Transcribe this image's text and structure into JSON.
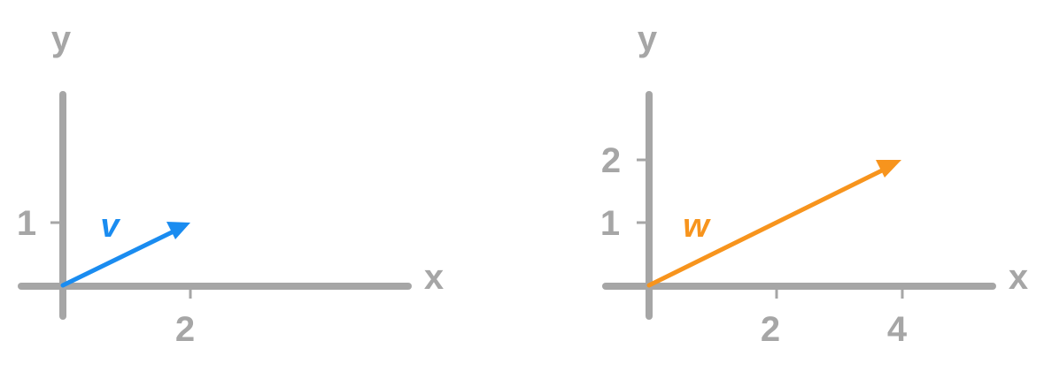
{
  "colors": {
    "axis": "#a6a6a6",
    "vector_v": "#1a8cf0",
    "vector_w": "#f7941d"
  },
  "left_plot": {
    "x_axis_label": "x",
    "y_axis_label": "y",
    "x_ticks": [
      "2"
    ],
    "y_ticks": [
      "1"
    ],
    "vector": {
      "label": "v",
      "x": 2,
      "y": 1
    }
  },
  "right_plot": {
    "x_axis_label": "x",
    "y_axis_label": "y",
    "x_ticks": [
      "2",
      "4"
    ],
    "y_ticks": [
      "1",
      "2"
    ],
    "vector": {
      "label": "w",
      "x": 4,
      "y": 2
    }
  }
}
